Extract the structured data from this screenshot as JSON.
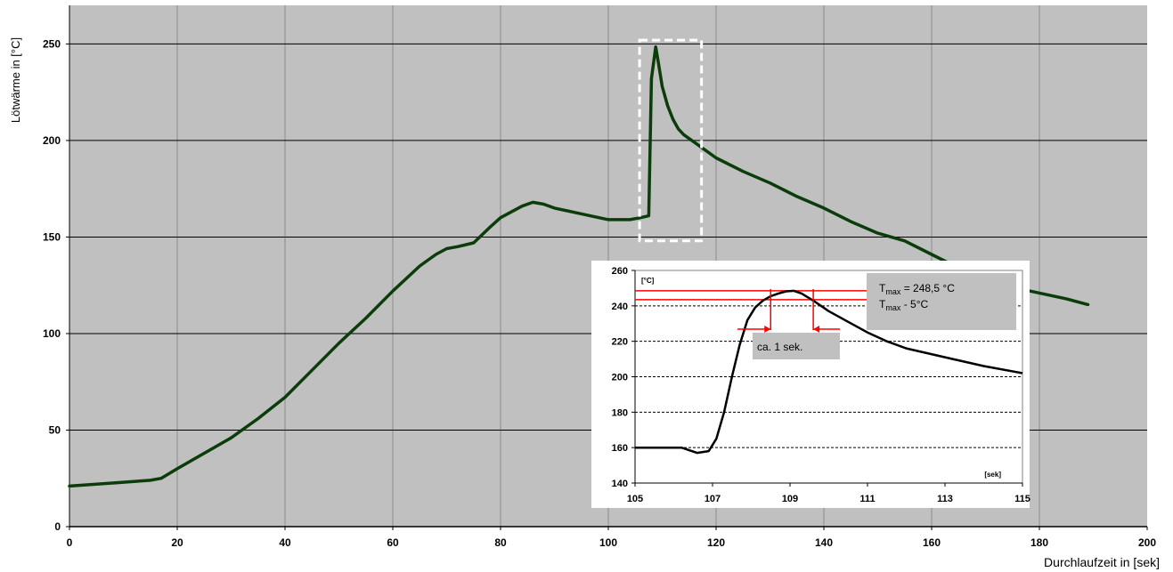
{
  "chart_data": [
    {
      "type": "line",
      "xlabel": "Durchlaufzeit in [sek]",
      "ylabel": "Lötwärme in [°C]",
      "xlim": [
        0,
        200
      ],
      "ylim": [
        0,
        270
      ],
      "xticks": [
        0,
        20,
        40,
        60,
        80,
        100,
        120,
        140,
        160,
        180,
        200
      ],
      "yticks": [
        0,
        50,
        100,
        150,
        200,
        250
      ],
      "grid": true,
      "colors": {
        "plot_bg": "#c0c0c0",
        "line": "#0b3d0b",
        "highlight_box": "#ffffff"
      },
      "series": [
        {
          "x": [
            0,
            5,
            10,
            15,
            17,
            20,
            25,
            30,
            35,
            40,
            45,
            50,
            55,
            60,
            65,
            68,
            70,
            72,
            75,
            78,
            80,
            82,
            84,
            86,
            88,
            90,
            95,
            100,
            104,
            106,
            107.5,
            108,
            108.8,
            109.3,
            110,
            111,
            112,
            113,
            114,
            116,
            118,
            120,
            125,
            130,
            135,
            140,
            145,
            150,
            155,
            160,
            165,
            170,
            175,
            180,
            185,
            189
          ],
          "y": [
            21,
            22,
            23,
            24,
            25,
            30,
            38,
            46,
            56,
            67,
            81,
            95,
            108,
            122,
            135,
            141,
            144,
            145,
            147,
            155,
            160,
            163,
            166,
            168,
            167,
            165,
            162,
            159,
            159,
            160,
            161,
            232,
            248.5,
            240,
            228,
            218,
            211,
            206,
            203,
            199,
            195,
            191,
            184,
            178,
            171,
            165,
            158,
            152,
            148,
            141,
            134,
            128,
            124,
            121,
            118,
            115
          ]
        }
      ],
      "highlight_box": {
        "x": [
          105.8,
          117.3
        ],
        "y": [
          148,
          252
        ]
      }
    },
    {
      "type": "line",
      "inset": true,
      "ylabel": "[°C]",
      "xlabel": "[sek]",
      "xlim": [
        105,
        115
      ],
      "ylim": [
        140,
        260
      ],
      "xticks": [
        105,
        107,
        109,
        111,
        113,
        115
      ],
      "yticks": [
        140,
        160,
        180,
        200,
        220,
        240,
        260
      ],
      "grid": true,
      "colors": {
        "line": "#000000",
        "marker": "#ff0000",
        "box": "#c0c0c0"
      },
      "series": [
        {
          "x": [
            105,
            106.2,
            106.6,
            106.9,
            107.1,
            107.3,
            107.5,
            107.7,
            107.9,
            108.1,
            108.3,
            108.5,
            108.7,
            108.9,
            109.1,
            109.3,
            109.6,
            110,
            110.5,
            111,
            111.5,
            112,
            113,
            114,
            115
          ],
          "y": [
            160,
            160,
            157,
            158,
            165,
            180,
            200,
            218,
            232,
            239,
            243,
            245.5,
            247,
            248.2,
            248.5,
            247,
            243,
            237,
            231,
            225,
            220,
            216,
            211,
            206,
            202
          ]
        }
      ],
      "annotations": {
        "tmax_label": "T",
        "tmax_sub": "max",
        "tmax_value": " = 248,5 °C",
        "tmax5_label": "T",
        "tmax5_sub": "max",
        "tmax5_value": " - 5°C",
        "duration": "ca. 1 sek.",
        "tmax": 248.5,
        "tmax_minus_5": 243.5,
        "interval_x": [
          108.5,
          109.6
        ]
      }
    }
  ]
}
